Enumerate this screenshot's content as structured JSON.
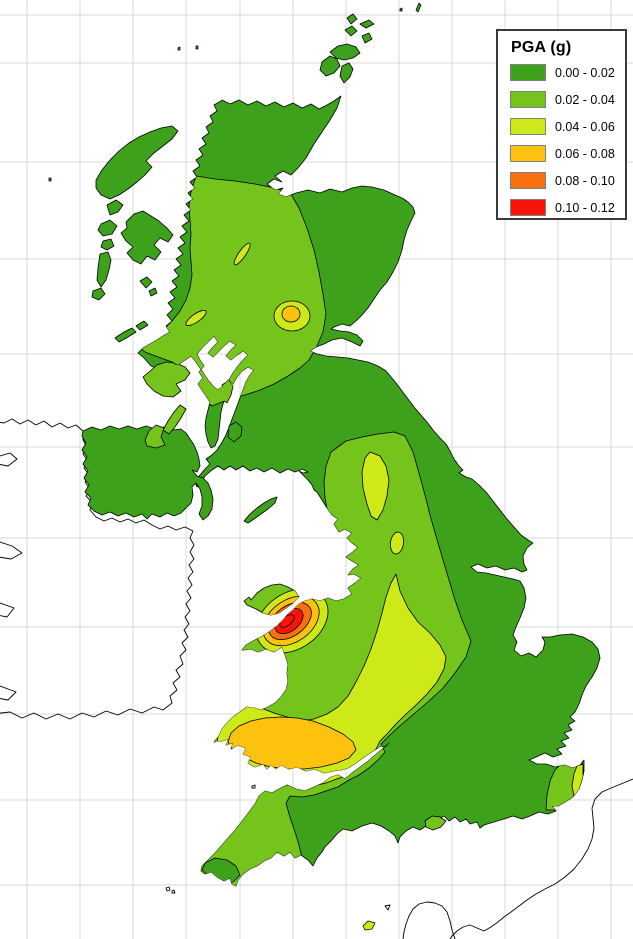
{
  "legend": {
    "title": "PGA (g)",
    "entries": [
      {
        "label": "0.00 - 0.02",
        "color": "#3da11c"
      },
      {
        "label": "0.02 - 0.04",
        "color": "#74c41c"
      },
      {
        "label": "0.04 - 0.06",
        "color": "#cde918"
      },
      {
        "label": "0.06 - 0.08",
        "color": "#fcc20d"
      },
      {
        "label": "0.08 - 0.10",
        "color": "#f97010"
      },
      {
        "label": "0.10 - 0.12",
        "color": "#f9140b"
      }
    ]
  },
  "colors": {
    "background": "#ffffff",
    "gridline": "#d9d9d9",
    "coastline": "#000000",
    "neighbor": "#000000",
    "legend-border": "#3a3a3a",
    "swatch-border": "#808080"
  }
}
